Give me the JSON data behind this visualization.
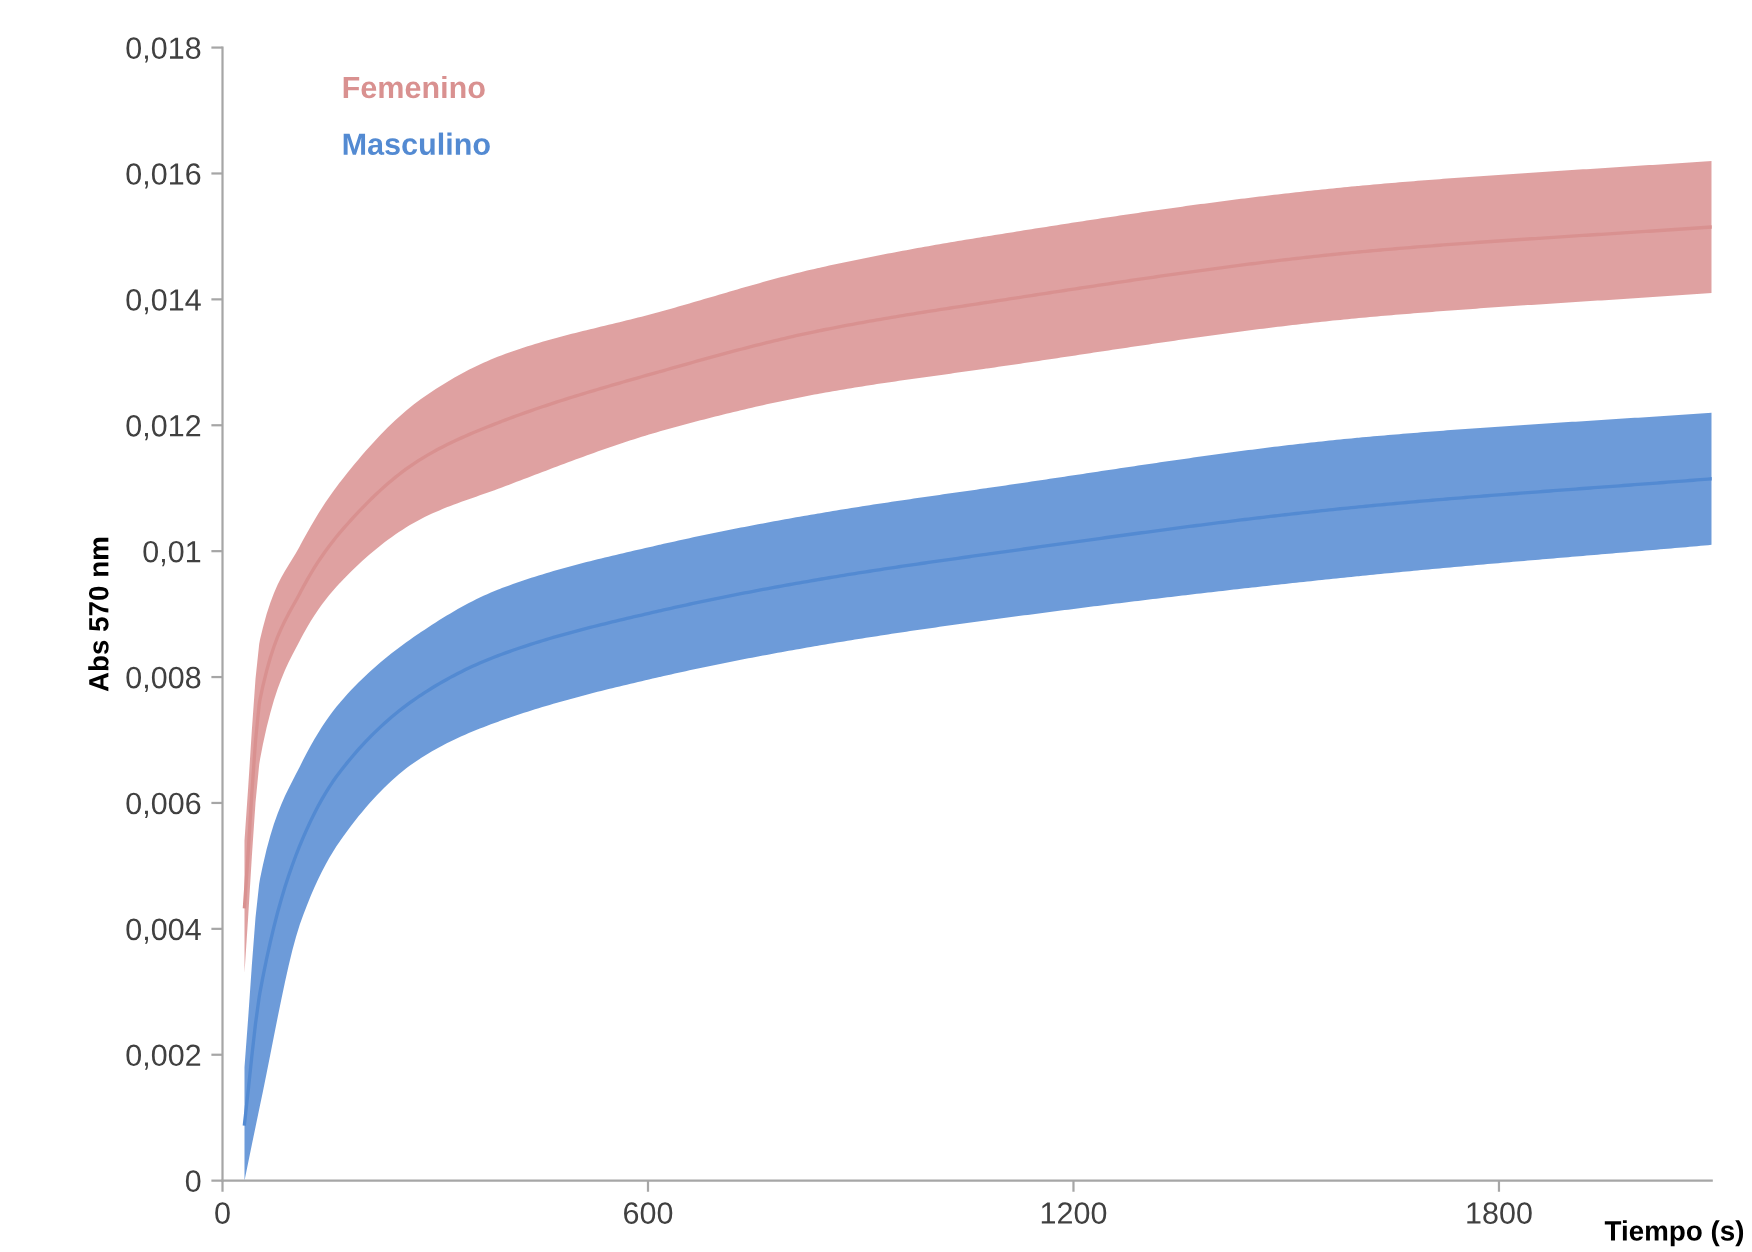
{
  "chart_data": {
    "type": "line",
    "xlabel": "Tiempo (s)",
    "ylabel": "Abs 570 nm",
    "xlim": [
      0,
      2100
    ],
    "xticks": [
      0,
      600,
      1200,
      1800
    ],
    "ylim": [
      0,
      0.018
    ],
    "yticks": [
      0,
      {
        "value": 0.002,
        "label": "0,002"
      },
      {
        "value": 0.004,
        "label": "0,004"
      },
      {
        "value": 0.006,
        "label": "0,006"
      },
      {
        "value": 0.008,
        "label": "0,008"
      },
      {
        "value": 0.01,
        "label": "0,01"
      },
      {
        "value": 0.012,
        "label": "0,012"
      },
      {
        "value": 0.014,
        "label": "0,014"
      },
      {
        "value": 0.016,
        "label": "0,016"
      },
      {
        "value": 0.018,
        "label": "0,018"
      }
    ],
    "grid": false,
    "series": [
      {
        "name": "Femenino",
        "color": "#d99190",
        "x": [
          31,
          53,
          110,
          166,
          278,
          391,
          616,
          841,
          1077,
          1600,
          2100
        ],
        "values": [
          0.00435,
          0.00765,
          0.00935,
          0.0103,
          0.01145,
          0.01205,
          0.01285,
          0.0135,
          0.01395,
          0.01475,
          0.01515
        ],
        "lower": [
          0.0033,
          0.0067,
          0.0086,
          0.0095,
          0.0105,
          0.011,
          0.0119,
          0.0125,
          0.0129,
          0.0137,
          0.0141
        ],
        "upper": [
          0.0054,
          0.0086,
          0.0101,
          0.0111,
          0.0124,
          0.0131,
          0.0138,
          0.0145,
          0.015,
          0.0158,
          0.0162
        ]
      },
      {
        "name": "Masculino",
        "color": "#538ad2",
        "x": [
          31,
          53,
          110,
          166,
          278,
          391,
          616,
          841,
          1077,
          1600,
          2100
        ],
        "values": [
          0.0009,
          0.003,
          0.00535,
          0.0065,
          0.0077,
          0.00835,
          0.00905,
          0.00955,
          0.00995,
          0.0107,
          0.01115
        ],
        "lower": [
          0.0,
          0.0012,
          0.0041,
          0.0054,
          0.0067,
          0.0073,
          0.008,
          0.0085,
          0.0089,
          0.0096,
          0.0101
        ],
        "upper": [
          0.0018,
          0.0048,
          0.0066,
          0.0076,
          0.0087,
          0.0094,
          0.0101,
          0.0106,
          0.011,
          0.0118,
          0.0122
        ]
      }
    ]
  }
}
